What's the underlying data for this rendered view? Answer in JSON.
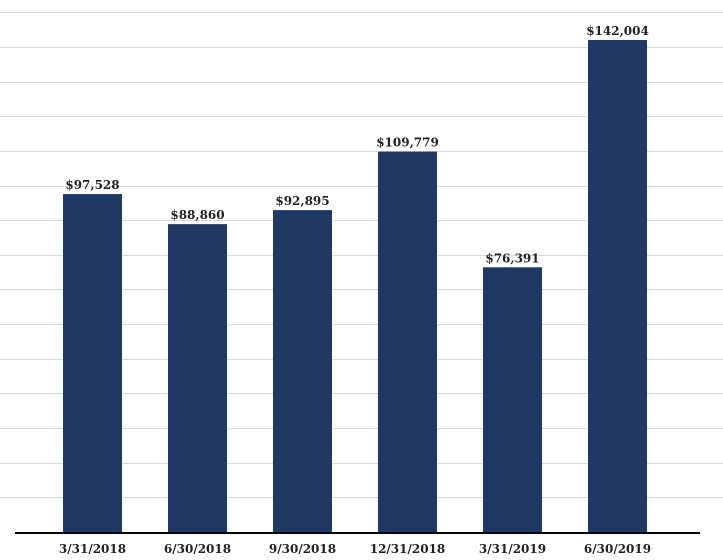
{
  "chart_data": {
    "type": "bar",
    "title": "",
    "xlabel": "",
    "ylabel": "",
    "categories": [
      "3/31/2018",
      "6/30/2018",
      "9/30/2018",
      "12/31/2018",
      "3/31/2019",
      "6/30/2019"
    ],
    "values": [
      97528,
      88860,
      92895,
      109779,
      76391,
      142004
    ],
    "data_labels": [
      "$97,528",
      "$88,860",
      "$92,895",
      "$109,779",
      "$76,391",
      "$142,004"
    ],
    "ylim": [
      0,
      150000
    ],
    "y_gridline_step": 10000,
    "y_axis_ticks_shown": false,
    "grid": true,
    "legend": "none",
    "bar_color": "#1f3864"
  }
}
